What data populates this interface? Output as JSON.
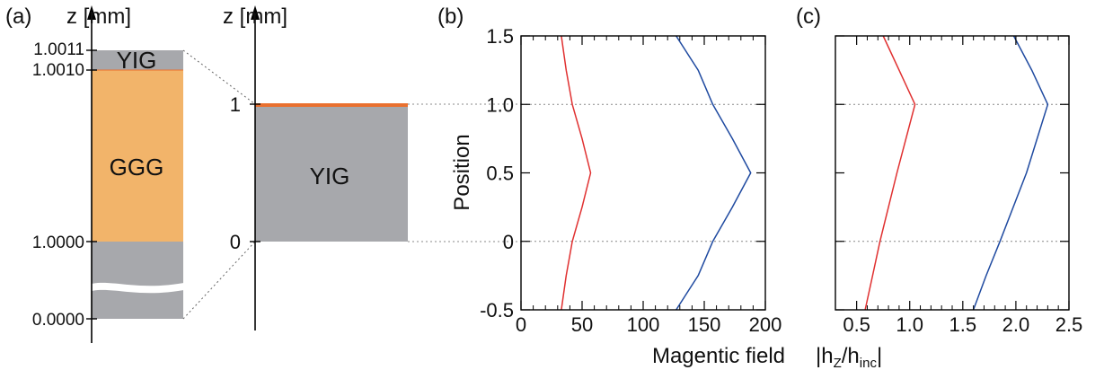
{
  "panel_a": {
    "label": "(a)",
    "left_axis_label": "z [mm]",
    "right_axis_label": "z [mm]",
    "left_ticks": [
      "1.0011",
      "1.0010",
      "1.0000",
      "0.0000"
    ],
    "right_ticks": [
      "1",
      "0"
    ],
    "layers": {
      "top": "YIG",
      "middle": "GGG",
      "zoom": "YIG"
    },
    "colors": {
      "yig": "#a7a8ac",
      "ggg": "#f2b46a",
      "interface": "#e9702f"
    }
  },
  "panel_b": {
    "label": "(b)"
  },
  "panel_c": {
    "label": "(c)"
  },
  "y_axis_label": "Position",
  "x_label_b": "Magentic field",
  "x_label_c": {
    "pre": "|h",
    "sub1": "Z",
    "mid": "/h",
    "sub2": "inc",
    "post": "|"
  },
  "chart_data": [
    {
      "type": "line",
      "panel": "(b)",
      "xlabel": "Magentic field",
      "ylabel": "Position",
      "xlim": [
        0,
        200
      ],
      "ylim": [
        -0.5,
        1.5
      ],
      "xticks": [
        "0",
        "50",
        "100",
        "150",
        "200"
      ],
      "yticks": [
        "-0.5",
        "0",
        "0.5",
        "1.0",
        "1.5"
      ],
      "reference_lines_y": [
        0,
        1
      ],
      "series": [
        {
          "color": "#e03030",
          "points": [
            [
              33,
              -0.5
            ],
            [
              37,
              -0.25
            ],
            [
              42,
              0
            ],
            [
              50,
              0.25
            ],
            [
              57,
              0.5
            ],
            [
              50,
              0.75
            ],
            [
              42,
              1.0
            ],
            [
              37,
              1.25
            ],
            [
              33,
              1.5
            ]
          ]
        },
        {
          "color": "#1f4aa0",
          "points": [
            [
              127,
              -0.5
            ],
            [
              145,
              -0.25
            ],
            [
              157,
              0
            ],
            [
              173,
              0.25
            ],
            [
              188,
              0.5
            ],
            [
              173,
              0.75
            ],
            [
              157,
              1.0
            ],
            [
              145,
              1.25
            ],
            [
              127,
              1.5
            ]
          ]
        }
      ]
    },
    {
      "type": "line",
      "panel": "(c)",
      "xlabel": "|hZ/hinc|",
      "xlim": [
        0.3,
        2.5
      ],
      "ylim": [
        -0.5,
        1.5
      ],
      "xticks": [
        "0.5",
        "1.0",
        "1.5",
        "2.0",
        "2.5"
      ],
      "reference_lines_y": [
        0,
        1
      ],
      "series": [
        {
          "color": "#e03030",
          "points": [
            [
              0.58,
              -0.5
            ],
            [
              0.65,
              -0.25
            ],
            [
              0.72,
              0
            ],
            [
              0.88,
              0.5
            ],
            [
              1.05,
              1.0
            ],
            [
              0.9,
              1.25
            ],
            [
              0.75,
              1.5
            ]
          ]
        },
        {
          "color": "#1f4aa0",
          "points": [
            [
              1.6,
              -0.5
            ],
            [
              1.72,
              -0.25
            ],
            [
              1.85,
              0
            ],
            [
              2.1,
              0.5
            ],
            [
              2.3,
              1.0
            ],
            [
              2.15,
              1.25
            ],
            [
              1.98,
              1.5
            ]
          ]
        }
      ]
    }
  ]
}
